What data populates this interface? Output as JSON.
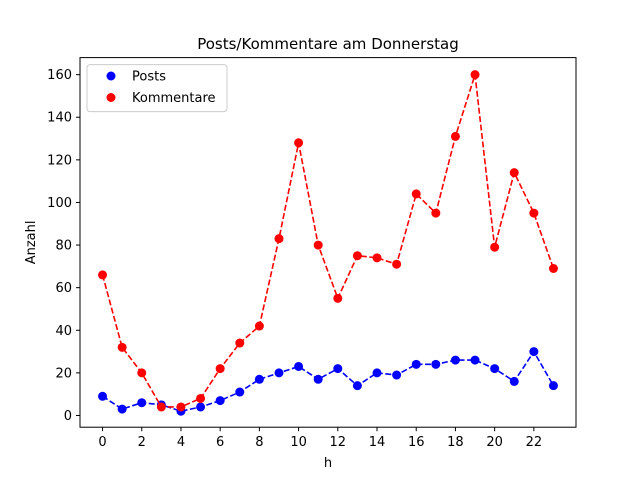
{
  "chart_data": {
    "type": "line",
    "title": "Posts/Kommentare am Donnerstag",
    "xlabel": "h",
    "ylabel": "Anzahl",
    "xlim": [
      -1.15,
      24.15
    ],
    "ylim": [
      -5.5,
      168.0
    ],
    "xticks": [
      0,
      2,
      4,
      6,
      8,
      10,
      12,
      14,
      16,
      18,
      20,
      22
    ],
    "yticks": [
      0,
      20,
      40,
      60,
      80,
      100,
      120,
      140,
      160
    ],
    "legend_position": "top-left",
    "grid": false,
    "x": [
      0,
      1,
      2,
      3,
      4,
      5,
      6,
      7,
      8,
      9,
      10,
      11,
      12,
      13,
      14,
      15,
      16,
      17,
      18,
      19,
      20,
      21,
      22,
      23
    ],
    "series": [
      {
        "name": "Posts",
        "color": "#0000ff",
        "marker": "circle",
        "linestyle": "dashed",
        "values": [
          9,
          3,
          6,
          5,
          2,
          4,
          7,
          11,
          17,
          20,
          23,
          17,
          22,
          14,
          20,
          19,
          24,
          24,
          26,
          26,
          22,
          16,
          30,
          14
        ]
      },
      {
        "name": "Kommentare",
        "color": "#ff0000",
        "marker": "circle",
        "linestyle": "dashed",
        "values": [
          66,
          32,
          20,
          4,
          4,
          8,
          22,
          34,
          42,
          83,
          128,
          80,
          55,
          75,
          74,
          71,
          104,
          95,
          131,
          160,
          79,
          114,
          95,
          69
        ]
      }
    ]
  }
}
